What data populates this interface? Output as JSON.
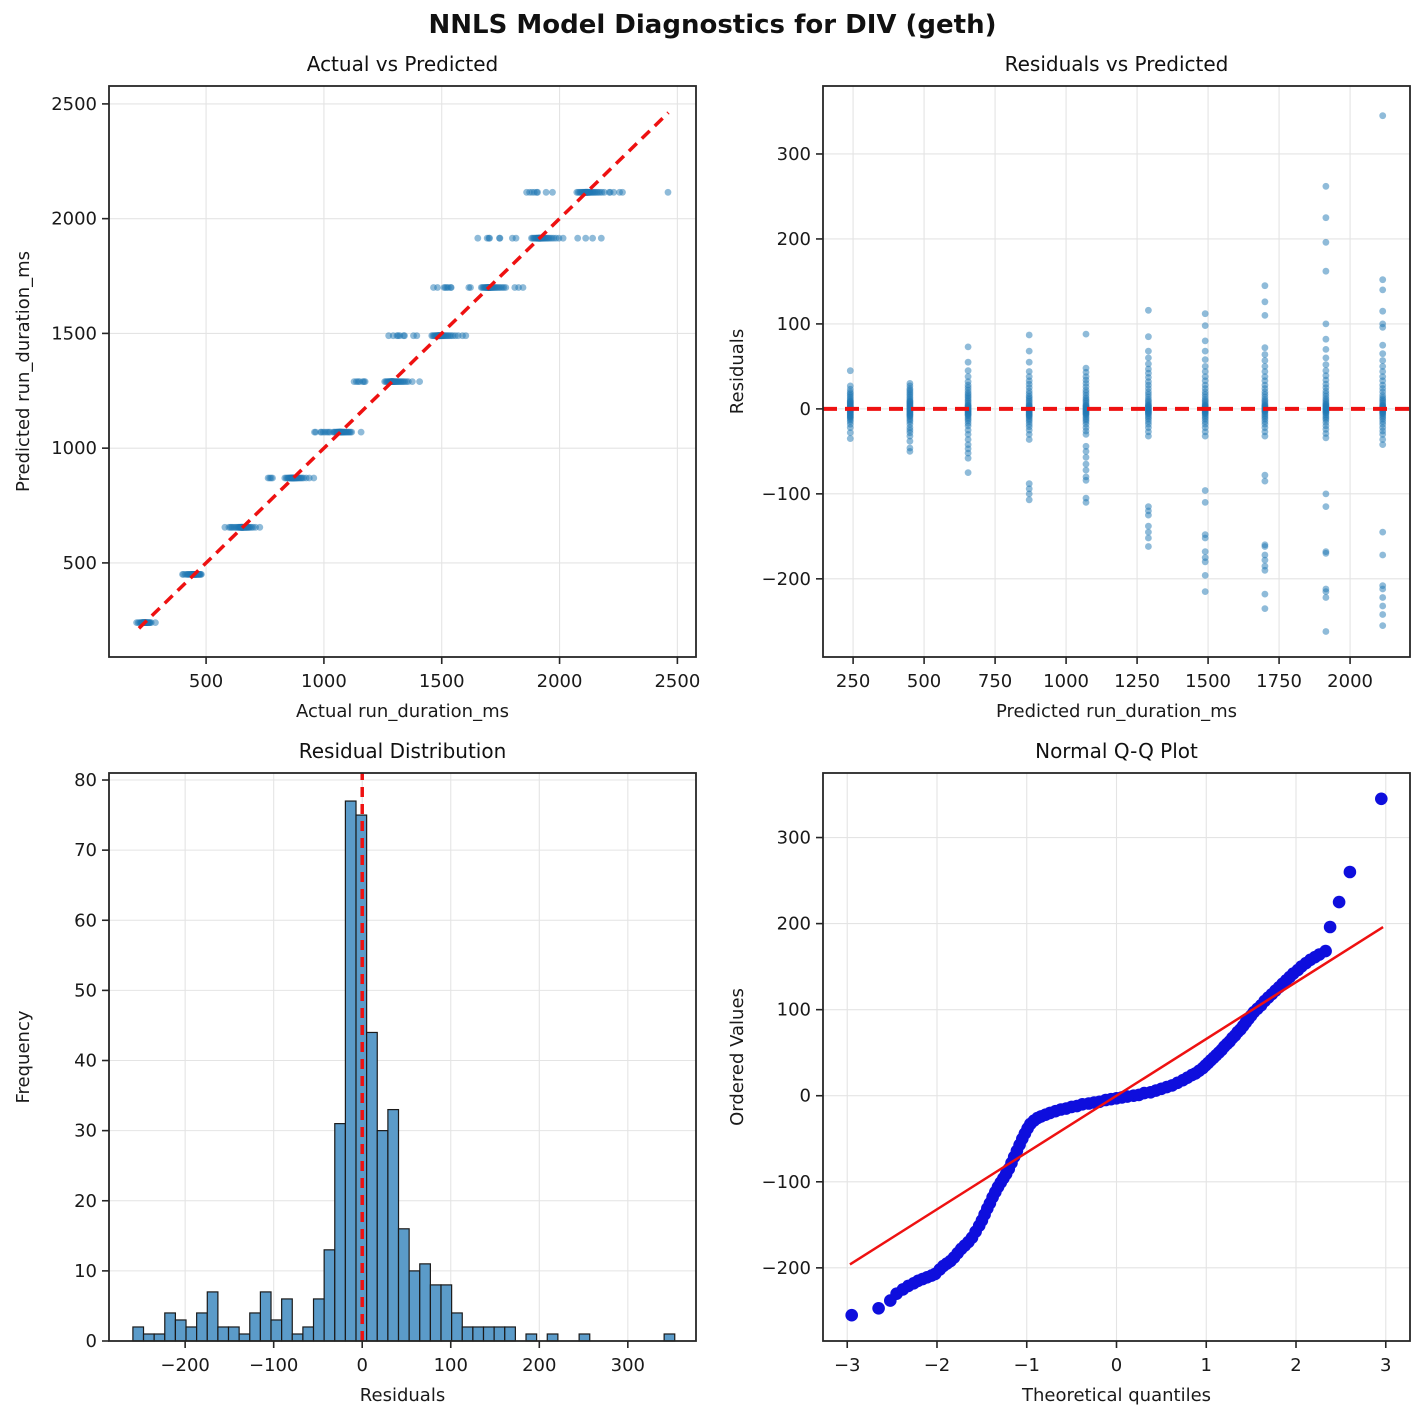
{
  "figure": {
    "title": "NNLS Model Diagnostics for DIV (geth)"
  },
  "colors": {
    "scatter_dot": "#1f77b4",
    "hist_fill": "#5b9bc9",
    "hist_edge": "#1a1a1a",
    "qq_dot": "#0e0edd",
    "ref_red": "#ee1111",
    "grid": "#e4e4e4",
    "spine": "#262626",
    "text": "#1a1a1a"
  },
  "chart_data": {
    "bands": [
      {
        "predicted": 240,
        "residuals": [
          -35,
          -28,
          -22,
          -18,
          -15,
          -13,
          -11,
          -10,
          -9,
          -8,
          -7,
          -6,
          -5,
          -4,
          -3,
          -2,
          -2,
          -1,
          0,
          0,
          1,
          1,
          2,
          3,
          3,
          4,
          5,
          6,
          7,
          8,
          9,
          10,
          12,
          14,
          16,
          18,
          20,
          23,
          27,
          45
        ]
      },
      {
        "predicted": 450,
        "residuals": [
          -50,
          -46,
          -38,
          -32,
          -28,
          -25,
          -22,
          -18,
          -15,
          -13,
          -11,
          -9,
          -8,
          -7,
          -6,
          -5,
          -4,
          -3,
          -2,
          -1,
          0,
          1,
          2,
          3,
          4,
          5,
          6,
          7,
          8,
          9,
          10,
          12,
          14,
          16,
          18,
          20,
          22,
          24,
          27,
          30
        ]
      },
      {
        "predicted": 655,
        "residuals": [
          -75,
          -58,
          -52,
          -47,
          -42,
          -36,
          -30,
          -25,
          -20,
          -17,
          -14,
          -12,
          -10,
          -8,
          -7,
          -6,
          -5,
          -4,
          -3,
          -2,
          -1,
          0,
          1,
          2,
          3,
          4,
          5,
          7,
          9,
          11,
          13,
          15,
          17,
          19,
          22,
          25,
          28,
          32,
          38,
          45,
          55,
          73
        ]
      },
      {
        "predicted": 870,
        "residuals": [
          -107,
          -100,
          -94,
          -88,
          -36,
          -30,
          -25,
          -21,
          -18,
          -15,
          -13,
          -11,
          -9,
          -8,
          -7,
          -6,
          -5,
          -4,
          -3,
          -2,
          -1,
          0,
          1,
          2,
          3,
          4,
          5,
          7,
          9,
          11,
          13,
          15,
          18,
          21,
          25,
          29,
          33,
          38,
          44,
          55,
          68,
          87
        ]
      },
      {
        "predicted": 1070,
        "residuals": [
          -110,
          -105,
          -84,
          -80,
          -72,
          -65,
          -57,
          -50,
          -44,
          -30,
          -26,
          -22,
          -18,
          -15,
          -13,
          -11,
          -9,
          -7,
          -6,
          -5,
          -4,
          -3,
          -2,
          -1,
          0,
          1,
          2,
          3,
          4,
          5,
          7,
          9,
          11,
          13,
          16,
          19,
          22,
          26,
          30,
          34,
          38,
          43,
          48,
          88
        ]
      },
      {
        "predicted": 1290,
        "residuals": [
          -162,
          -152,
          -145,
          -138,
          -125,
          -120,
          -115,
          -32,
          -27,
          -22,
          -18,
          -15,
          -12,
          -10,
          -8,
          -6,
          -5,
          -4,
          -3,
          -2,
          -1,
          0,
          1,
          2,
          3,
          4,
          5,
          7,
          9,
          11,
          14,
          17,
          20,
          24,
          28,
          32,
          37,
          42,
          47,
          53,
          60,
          68,
          85,
          116
        ]
      },
      {
        "predicted": 1490,
        "residuals": [
          -215,
          -196,
          -180,
          -175,
          -168,
          -152,
          -148,
          -110,
          -96,
          -32,
          -27,
          -22,
          -18,
          -15,
          -12,
          -10,
          -8,
          -6,
          -5,
          -4,
          -3,
          -2,
          -1,
          0,
          1,
          2,
          3,
          4,
          5,
          7,
          9,
          11,
          14,
          17,
          20,
          24,
          28,
          33,
          38,
          44,
          50,
          58,
          68,
          80,
          98,
          112
        ]
      },
      {
        "predicted": 1700,
        "residuals": [
          -235,
          -218,
          -190,
          -185,
          -178,
          -172,
          -162,
          -160,
          -85,
          -78,
          -32,
          -27,
          -22,
          -18,
          -15,
          -12,
          -10,
          -8,
          -6,
          -4,
          -3,
          -2,
          -1,
          0,
          1,
          2,
          3,
          4,
          5,
          7,
          9,
          11,
          14,
          17,
          20,
          24,
          28,
          33,
          38,
          44,
          50,
          57,
          64,
          72,
          110,
          126,
          145
        ]
      },
      {
        "predicted": 1915,
        "residuals": [
          -262,
          -222,
          -215,
          -212,
          -170,
          -168,
          -115,
          -100,
          -34,
          -29,
          -24,
          -20,
          -16,
          -13,
          -11,
          -9,
          -7,
          -5,
          -4,
          -3,
          -2,
          -1,
          0,
          1,
          2,
          3,
          4,
          5,
          6,
          8,
          10,
          12,
          15,
          18,
          21,
          25,
          29,
          34,
          39,
          45,
          52,
          60,
          70,
          82,
          100,
          162,
          196,
          225,
          262
        ]
      },
      {
        "predicted": 2115,
        "residuals": [
          -255,
          -242,
          -232,
          -222,
          -212,
          -208,
          -172,
          -145,
          -42,
          -36,
          -30,
          -26,
          -22,
          -18,
          -15,
          -12,
          -10,
          -8,
          -6,
          -5,
          -4,
          -3,
          -2,
          -1,
          0,
          1,
          2,
          3,
          4,
          5,
          7,
          9,
          11,
          13,
          16,
          20,
          24,
          28,
          33,
          38,
          44,
          50,
          57,
          65,
          75,
          96,
          100,
          115,
          140,
          152,
          345
        ]
      }
    ],
    "panels": [
      {
        "type": "scatter",
        "mode": "actual_vs_predicted",
        "title": "Actual vs Predicted",
        "xlabel": "Actual run_duration_ms",
        "ylabel": "Predicted run_duration_ms",
        "xlim": [
          88,
          2579
        ],
        "ylim": [
          90,
          2578
        ],
        "xticks": [
          500,
          1000,
          1500,
          2000,
          2500
        ],
        "yticks": [
          500,
          1000,
          1500,
          2000,
          2500
        ],
        "marker": {
          "r": 3.4,
          "opacity": 0.5
        },
        "ref_lines": [
          {
            "x1": 215,
            "y1": 215,
            "x2": 2462,
            "y2": 2462,
            "width": 3.5,
            "dash": "11 7"
          }
        ]
      },
      {
        "type": "scatter",
        "mode": "residuals_vs_predicted",
        "title": "Residuals vs Predicted",
        "xlabel": "Predicted run_duration_ms",
        "ylabel": "Residuals",
        "xlim": [
          144,
          2211
        ],
        "ylim": [
          -292,
          380
        ],
        "xticks": [
          250,
          500,
          750,
          1000,
          1250,
          1500,
          1750,
          2000
        ],
        "yticks": [
          -200,
          -100,
          0,
          100,
          200,
          300
        ],
        "marker": {
          "r": 3.4,
          "opacity": 0.5
        },
        "ref_lines": [
          {
            "x1": 144,
            "y1": 0,
            "x2": 2211,
            "y2": 0,
            "width": 4,
            "dash": "14 8"
          }
        ]
      },
      {
        "type": "histogram",
        "title": "Residual Distribution",
        "xlabel": "Residuals",
        "ylabel": "Frequency",
        "xlim": [
          -286,
          377
        ],
        "ylim": [
          0,
          81
        ],
        "xticks": [
          -200,
          -100,
          0,
          100,
          200,
          300
        ],
        "yticks": [
          0,
          10,
          20,
          30,
          40,
          50,
          60,
          70,
          80
        ],
        "bin_start": -259,
        "bin_width": 12,
        "counts": [
          2,
          1,
          1,
          4,
          3,
          2,
          4,
          7,
          2,
          2,
          1,
          4,
          7,
          3,
          6,
          1,
          2,
          6,
          13,
          31,
          77,
          75,
          44,
          30,
          33,
          16,
          10,
          11,
          8,
          8,
          4,
          2,
          2,
          2,
          2,
          2,
          0,
          1,
          0,
          1,
          0,
          0,
          1,
          0,
          0,
          0,
          0,
          0,
          0,
          0,
          1
        ],
        "ref_lines": [
          {
            "x1": 0,
            "y1": 0,
            "x2": 0,
            "y2": 81,
            "width": 3.5,
            "dash": "10 7"
          }
        ]
      },
      {
        "type": "qq",
        "title": "Normal Q-Q Plot",
        "xlabel": "Theoretical quantiles",
        "ylabel": "Ordered Values",
        "xlim": [
          -3.27,
          3.27
        ],
        "ylim": [
          -285,
          375
        ],
        "xticks": [
          -3,
          -2,
          -1,
          0,
          1,
          2,
          3
        ],
        "yticks": [
          -200,
          -100,
          0,
          100,
          200,
          300
        ],
        "marker": {
          "r": 6.3,
          "opacity": 1
        },
        "points": [
          [
            -2.95,
            -255
          ],
          [
            -2.65,
            -247
          ],
          [
            -2.52,
            -238
          ],
          [
            -2.45,
            -230
          ],
          [
            -2.38,
            -225
          ],
          [
            -2.32,
            -221
          ],
          [
            -2.26,
            -218
          ],
          [
            -2.21,
            -215
          ],
          [
            -2.16,
            -213
          ],
          [
            -2.11,
            -211
          ],
          [
            -2.06,
            -209
          ],
          [
            -2.02,
            -207
          ],
          [
            -1.97,
            -202
          ],
          [
            -1.93,
            -198
          ],
          [
            -1.89,
            -195
          ],
          [
            -1.85,
            -192
          ],
          [
            -1.81,
            -188
          ],
          [
            -1.77,
            -183
          ],
          [
            -1.73,
            -178
          ],
          [
            -1.69,
            -174
          ],
          [
            -1.65,
            -170
          ],
          [
            -1.61,
            -165
          ],
          [
            -1.57,
            -158
          ],
          [
            -1.53,
            -151
          ],
          [
            -1.5,
            -145
          ],
          [
            -1.47,
            -138
          ],
          [
            -1.44,
            -131
          ],
          [
            -1.41,
            -125
          ],
          [
            -1.38,
            -118
          ],
          [
            -1.35,
            -112
          ],
          [
            -1.32,
            -106
          ],
          [
            -1.29,
            -101
          ],
          [
            -1.26,
            -96
          ],
          [
            -1.23,
            -91
          ],
          [
            -1.2,
            -85
          ],
          [
            -1.17,
            -78
          ],
          [
            -1.14,
            -71
          ],
          [
            -1.11,
            -64
          ],
          [
            -1.08,
            -57
          ],
          [
            -1.05,
            -50
          ],
          [
            -1.02,
            -44
          ],
          [
            -0.99,
            -38
          ],
          [
            -0.96,
            -33
          ],
          [
            -0.92,
            -29
          ],
          [
            -0.88,
            -26
          ],
          [
            -0.84,
            -24
          ],
          [
            -0.79,
            -22
          ],
          [
            -0.74,
            -20
          ],
          [
            -0.68,
            -18
          ],
          [
            -0.62,
            -16
          ],
          [
            -0.56,
            -15
          ],
          [
            -0.5,
            -13
          ],
          [
            -0.44,
            -12
          ],
          [
            -0.38,
            -10
          ],
          [
            -0.31,
            -9
          ],
          [
            -0.25,
            -8
          ],
          [
            -0.19,
            -7
          ],
          [
            -0.12,
            -5
          ],
          [
            -0.06,
            -4
          ],
          [
            0,
            -3
          ],
          [
            0.06,
            -2
          ],
          [
            0.12,
            -1
          ],
          [
            0.19,
            0
          ],
          [
            0.25,
            1
          ],
          [
            0.31,
            3
          ],
          [
            0.38,
            4
          ],
          [
            0.44,
            6
          ],
          [
            0.5,
            8
          ],
          [
            0.56,
            10
          ],
          [
            0.62,
            12
          ],
          [
            0.68,
            15
          ],
          [
            0.74,
            18
          ],
          [
            0.79,
            21
          ],
          [
            0.84,
            24
          ],
          [
            0.88,
            26
          ],
          [
            0.92,
            29
          ],
          [
            0.96,
            32
          ],
          [
            0.99,
            35
          ],
          [
            1.02,
            38
          ],
          [
            1.05,
            41
          ],
          [
            1.08,
            44
          ],
          [
            1.11,
            47
          ],
          [
            1.14,
            50
          ],
          [
            1.17,
            53
          ],
          [
            1.2,
            57
          ],
          [
            1.23,
            60
          ],
          [
            1.26,
            63
          ],
          [
            1.29,
            67
          ],
          [
            1.32,
            70
          ],
          [
            1.35,
            74
          ],
          [
            1.38,
            77
          ],
          [
            1.41,
            81
          ],
          [
            1.44,
            85
          ],
          [
            1.47,
            89
          ],
          [
            1.5,
            93
          ],
          [
            1.53,
            97
          ],
          [
            1.57,
            101
          ],
          [
            1.61,
            105
          ],
          [
            1.65,
            110
          ],
          [
            1.69,
            114
          ],
          [
            1.73,
            118
          ],
          [
            1.77,
            122
          ],
          [
            1.81,
            126
          ],
          [
            1.85,
            130
          ],
          [
            1.89,
            134
          ],
          [
            1.93,
            138
          ],
          [
            1.97,
            142
          ],
          [
            2.02,
            146
          ],
          [
            2.06,
            150
          ],
          [
            2.11,
            154
          ],
          [
            2.16,
            158
          ],
          [
            2.21,
            161
          ],
          [
            2.26,
            164
          ],
          [
            2.33,
            168
          ],
          [
            2.38,
            196
          ],
          [
            2.48,
            225
          ],
          [
            2.6,
            260
          ],
          [
            2.95,
            345
          ]
        ],
        "fit_line": {
          "x1": -2.97,
          "y1": -196,
          "x2": 2.97,
          "y2": 196,
          "width": 2.5
        }
      }
    ]
  }
}
